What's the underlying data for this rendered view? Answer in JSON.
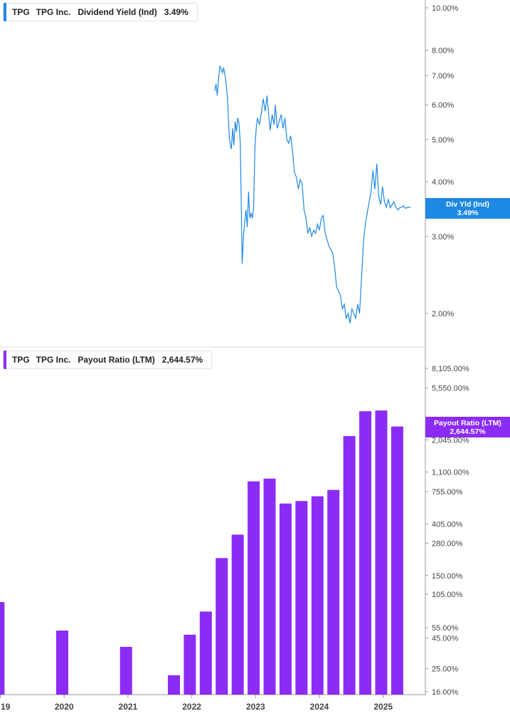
{
  "colors": {
    "yield": "#1e88e5",
    "payout": "#8b2cf5",
    "axis": "#999999",
    "text": "#444444"
  },
  "top_legend": {
    "ticker": "TPG",
    "company": "TPG Inc.",
    "metric": "Dividend Yield (Ind)",
    "value": "3.49%"
  },
  "top_flag": {
    "label": "Div Yld (Ind)",
    "value": "3.49%"
  },
  "bottom_legend": {
    "ticker": "TPG",
    "company": "TPG Inc.",
    "metric": "Payout Ratio (LTM)",
    "value": "2,644.57%"
  },
  "bottom_flag": {
    "label": "Payout Ratio (LTM)",
    "value": "2,644.57%"
  },
  "chart_data": [
    {
      "type": "line",
      "title": "",
      "scale": "log",
      "series": [
        {
          "name": "Dividend Yield (Ind)",
          "x": [
            2022.36,
            2022.38,
            2022.4,
            2022.42,
            2022.44,
            2022.46,
            2022.48,
            2022.5,
            2022.53,
            2022.56,
            2022.59,
            2022.62,
            2022.64,
            2022.66,
            2022.68,
            2022.7,
            2022.72,
            2022.74,
            2022.76,
            2022.79,
            2022.81,
            2022.83,
            2022.85,
            2022.87,
            2022.89,
            2022.91,
            2022.93,
            2022.95,
            2022.97,
            2022.99,
            2023.01,
            2023.03,
            2023.06,
            2023.09,
            2023.12,
            2023.15,
            2023.18,
            2023.21,
            2023.23,
            2023.26,
            2023.29,
            2023.31,
            2023.34,
            2023.37,
            2023.4,
            2023.43,
            2023.46,
            2023.49,
            2023.52,
            2023.55,
            2023.58,
            2023.61,
            2023.64,
            2023.67,
            2023.7,
            2023.73,
            2023.76,
            2023.79,
            2023.82,
            2023.85,
            2023.88,
            2023.91,
            2023.94,
            2023.97,
            2024.0,
            2024.03,
            2024.06,
            2024.09,
            2024.12,
            2024.15,
            2024.18,
            2024.21,
            2024.24,
            2024.27,
            2024.3,
            2024.33,
            2024.36,
            2024.39,
            2024.42,
            2024.45,
            2024.48,
            2024.51,
            2024.54,
            2024.57,
            2024.6,
            2024.63,
            2024.66,
            2024.69,
            2024.72,
            2024.75,
            2024.78,
            2024.81,
            2024.84,
            2024.87,
            2024.9,
            2024.93,
            2024.96,
            2024.99,
            2025.02,
            2025.05,
            2025.08,
            2025.11,
            2025.14,
            2025.17,
            2025.2,
            2025.23,
            2025.26,
            2025.29,
            2025.32,
            2025.35,
            2025.37,
            2025.4,
            2025.43
          ],
          "values": [
            6.45,
            6.7,
            6.3,
            6.9,
            7.35,
            7.25,
            7.1,
            7.3,
            6.9,
            6.2,
            5.0,
            4.75,
            5.3,
            4.85,
            5.5,
            5.2,
            5.6,
            5.45,
            4.9,
            2.6,
            3.0,
            3.25,
            3.45,
            3.15,
            3.8,
            3.3,
            3.4,
            3.3,
            3.5,
            4.8,
            5.3,
            5.6,
            5.4,
            5.75,
            6.2,
            5.8,
            6.3,
            5.6,
            5.25,
            5.7,
            5.4,
            6.0,
            5.3,
            5.5,
            5.7,
            5.3,
            5.6,
            5.0,
            4.9,
            5.1,
            4.7,
            4.2,
            4.1,
            3.85,
            4.05,
            3.95,
            3.45,
            3.3,
            3.05,
            3.15,
            3.0,
            3.1,
            3.05,
            3.2,
            3.1,
            3.3,
            3.35,
            3.05,
            2.95,
            2.85,
            2.8,
            2.75,
            2.55,
            2.3,
            2.25,
            2.2,
            2.05,
            2.1,
            1.95,
            2.0,
            1.9,
            2.05,
            2.0,
            1.95,
            2.1,
            2.0,
            2.4,
            2.9,
            3.2,
            3.4,
            3.6,
            3.8,
            4.25,
            3.85,
            4.4,
            3.7,
            3.55,
            3.9,
            3.6,
            3.5,
            3.65,
            3.49,
            3.55,
            3.6,
            3.5,
            3.45,
            3.49,
            3.5,
            3.52,
            3.48,
            3.49,
            3.5,
            3.49
          ]
        }
      ],
      "yticks": [
        "2.00%",
        "3.00%",
        "4.00%",
        "5.00%",
        "6.00%",
        "7.00%",
        "8.00%",
        "10.00%"
      ],
      "ytick_values": [
        2,
        3,
        4,
        5,
        6,
        7,
        8,
        10
      ],
      "ylim": [
        1.6,
        10.6
      ]
    },
    {
      "type": "bar",
      "title": "",
      "scale": "log",
      "series": [
        {
          "name": "Payout Ratio (LTM)",
          "x": [
            2018.97,
            2019.97,
            2020.97,
            2021.72,
            2021.97,
            2022.22,
            2022.47,
            2022.72,
            2022.97,
            2023.22,
            2023.47,
            2023.72,
            2023.97,
            2024.22,
            2024.47,
            2024.72,
            2024.97,
            2025.22
          ],
          "values": [
            90,
            52,
            38,
            22,
            48,
            75,
            210,
            330,
            920,
            970,
            600,
            630,
            690,
            780,
            2200,
            3550,
            3600,
            2644.57
          ]
        }
      ],
      "xticks": [
        "19",
        "2020",
        "2021",
        "2022",
        "2023",
        "2024",
        "2025"
      ],
      "xtick_values": [
        2019,
        2020,
        2021,
        2022,
        2023,
        2024,
        2025
      ],
      "yticks": [
        "16.00%",
        "25.00%",
        "45.00%",
        "55.00%",
        "105.00%",
        "150.00%",
        "280.00%",
        "405.00%",
        "755.00%",
        "1,100.00%",
        "2,045.00%",
        "5,550.00%",
        "8,105.00%"
      ],
      "ytick_values": [
        16,
        25,
        45,
        55,
        105,
        150,
        280,
        405,
        755,
        1100,
        2045,
        5550,
        8105
      ],
      "ylim": [
        15.5,
        11000
      ]
    }
  ]
}
